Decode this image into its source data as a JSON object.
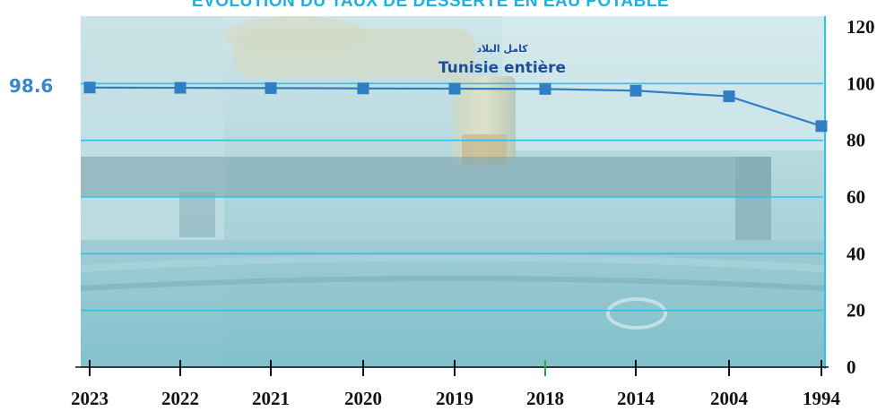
{
  "page": {
    "title": "EVOLUTION DU TAUX DE DESSERTE EN EAU POTABLE"
  },
  "colors": {
    "title": "#1fb0e0",
    "grid": "#29c3ea",
    "line": "#2f7fc4",
    "marker": "#2f7fc4",
    "callout": "#3a86c8",
    "series_label": "#1e4e9a"
  },
  "chart_data": {
    "type": "line",
    "title": "EVOLUTION DU TAUX DE DESSERTE EN EAU POTABLE",
    "categories": [
      "2023",
      "2022",
      "2021",
      "2020",
      "2019",
      "2018",
      "2014",
      "2004",
      "1994"
    ],
    "series": [
      {
        "name": "Tunisie entière",
        "name_ar": "كامل البلاد",
        "values": [
          98.6,
          98.5,
          98.4,
          98.3,
          98.2,
          98.1,
          97.5,
          95.5,
          85.0
        ]
      }
    ],
    "yticks": [
      "0",
      "20",
      "40",
      "60",
      "80",
      "100",
      "120"
    ],
    "ylim": [
      0,
      120
    ],
    "callout": "98.6",
    "xlabel": "",
    "ylabel": "",
    "grid": true,
    "background": "photo of a water tap (blue tint)"
  }
}
